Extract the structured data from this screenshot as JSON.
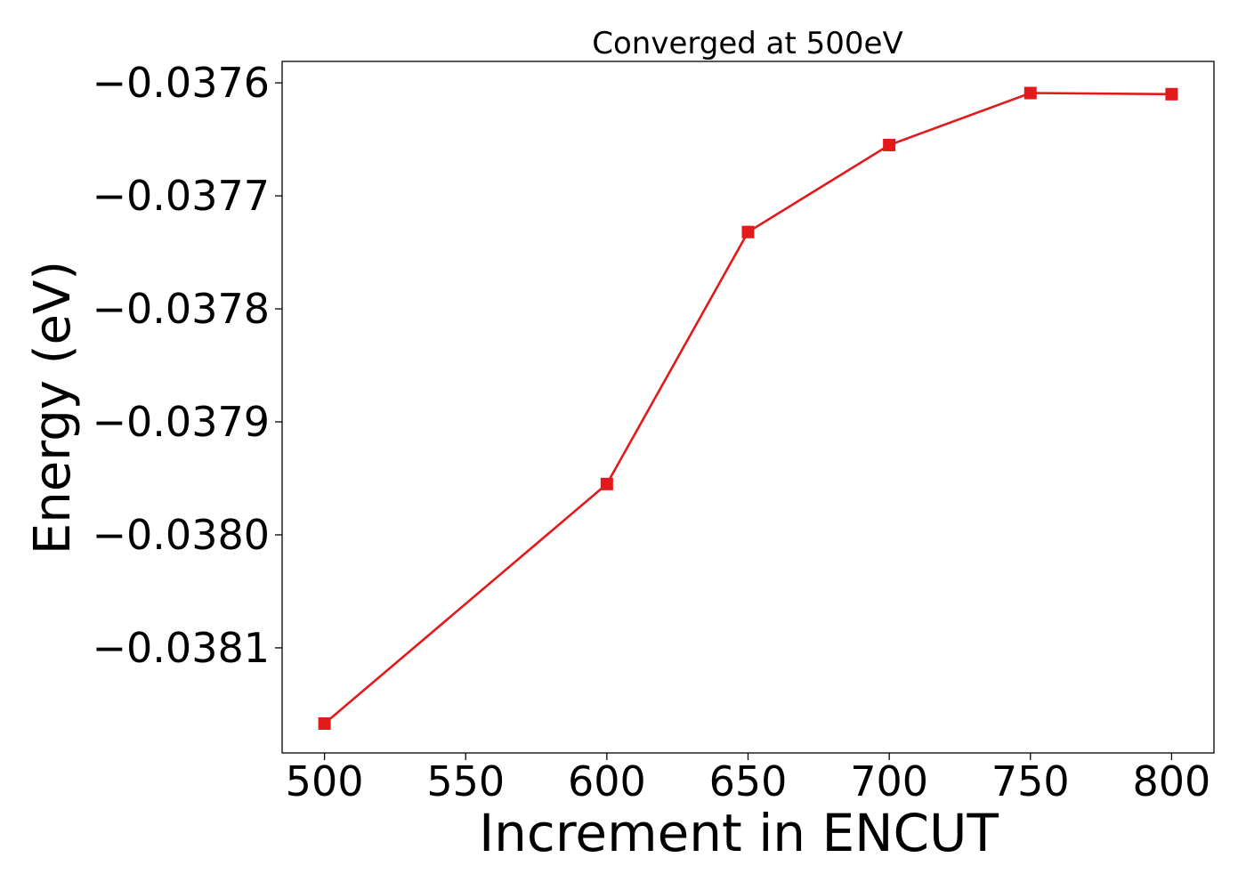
{
  "chart_data": {
    "type": "line",
    "title": "Converged at 500eV",
    "xlabel": "Increment in ENCUT",
    "ylabel": "Energy (eV)",
    "x_ticks": [
      "500",
      "550",
      "600",
      "650",
      "700",
      "750",
      "800"
    ],
    "y_ticks": [
      "−0.0376",
      "−0.0377",
      "−0.0378",
      "−0.0379",
      "−0.0380",
      "−0.0381"
    ],
    "xlim": [
      485,
      815
    ],
    "ylim": [
      -0.038193,
      -0.037581
    ],
    "grid": false,
    "series": [
      {
        "color": "#e31a1c",
        "marker": "square",
        "x": [
          500,
          600,
          650,
          700,
          750,
          800
        ],
        "y": [
          -0.038167,
          -0.037955,
          -0.037732,
          -0.037655,
          -0.037609,
          -0.03761
        ]
      }
    ]
  }
}
